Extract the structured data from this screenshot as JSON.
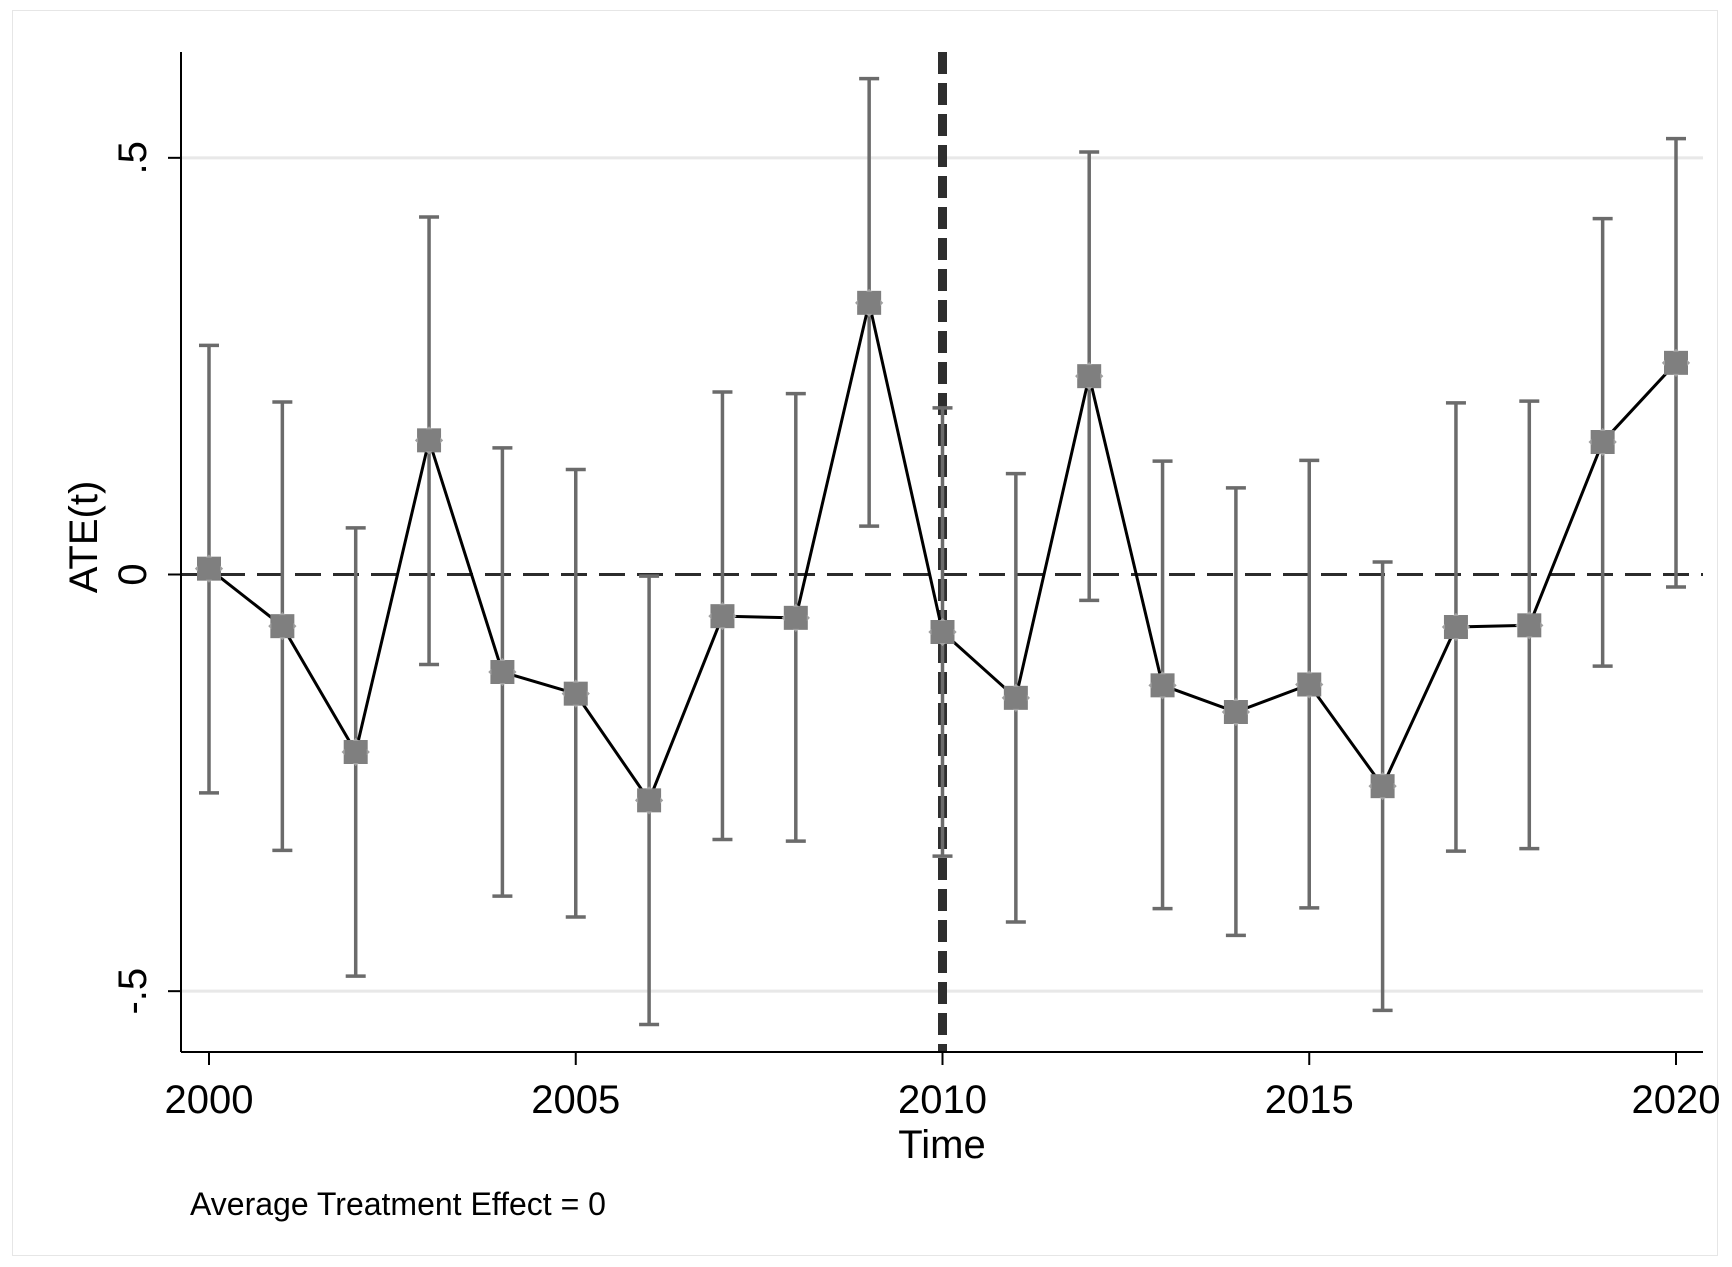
{
  "chart_data": {
    "type": "line",
    "xlabel": "Time",
    "ylabel": "ATE(t)",
    "note": "Average Treatment Effect = 0",
    "xlim": [
      2000,
      2020
    ],
    "ylim": [
      -0.573,
      0.627
    ],
    "x_ticks": [
      {
        "value": 2000,
        "label": "2000"
      },
      {
        "value": 2005,
        "label": "2005"
      },
      {
        "value": 2010,
        "label": "2010"
      },
      {
        "value": 2015,
        "label": "2015"
      },
      {
        "value": 2020,
        "label": "2020"
      }
    ],
    "y_ticks": [
      {
        "value": -0.5,
        "label": "-.5"
      },
      {
        "value": 0,
        "label": "0"
      },
      {
        "value": 0.5,
        "label": ".5"
      }
    ],
    "grid": {
      "horizontal": true,
      "values": [
        -0.5,
        0.5
      ]
    },
    "reference_lines": {
      "horizontal_zero": {
        "value": 0,
        "style": "dashed"
      },
      "vertical_treatment": {
        "value": 2010,
        "style": "thick-dashed"
      }
    },
    "series": [
      {
        "x": [
          2000,
          2001,
          2002,
          2003,
          2004,
          2005,
          2006,
          2007,
          2008,
          2009,
          2010,
          2011,
          2012,
          2013,
          2014,
          2015,
          2016,
          2017,
          2018,
          2019,
          2020
        ],
        "y": [
          0.007,
          -0.062,
          -0.213,
          0.161,
          -0.117,
          -0.143,
          -0.271,
          -0.05,
          -0.052,
          0.326,
          -0.069,
          -0.148,
          0.238,
          -0.133,
          -0.165,
          -0.132,
          -0.254,
          -0.063,
          -0.061,
          0.159,
          0.254
        ],
        "ci_low": [
          -0.262,
          -0.331,
          -0.482,
          -0.108,
          -0.386,
          -0.411,
          -0.54,
          -0.318,
          -0.32,
          0.058,
          -0.338,
          -0.417,
          -0.031,
          -0.401,
          -0.433,
          -0.4,
          -0.523,
          -0.332,
          -0.329,
          -0.11,
          -0.015
        ],
        "ci_high": [
          0.275,
          0.207,
          0.056,
          0.429,
          0.152,
          0.126,
          -0.002,
          0.219,
          0.217,
          0.595,
          0.2,
          0.121,
          0.507,
          0.136,
          0.104,
          0.137,
          0.015,
          0.206,
          0.208,
          0.427,
          0.523
        ]
      }
    ]
  }
}
